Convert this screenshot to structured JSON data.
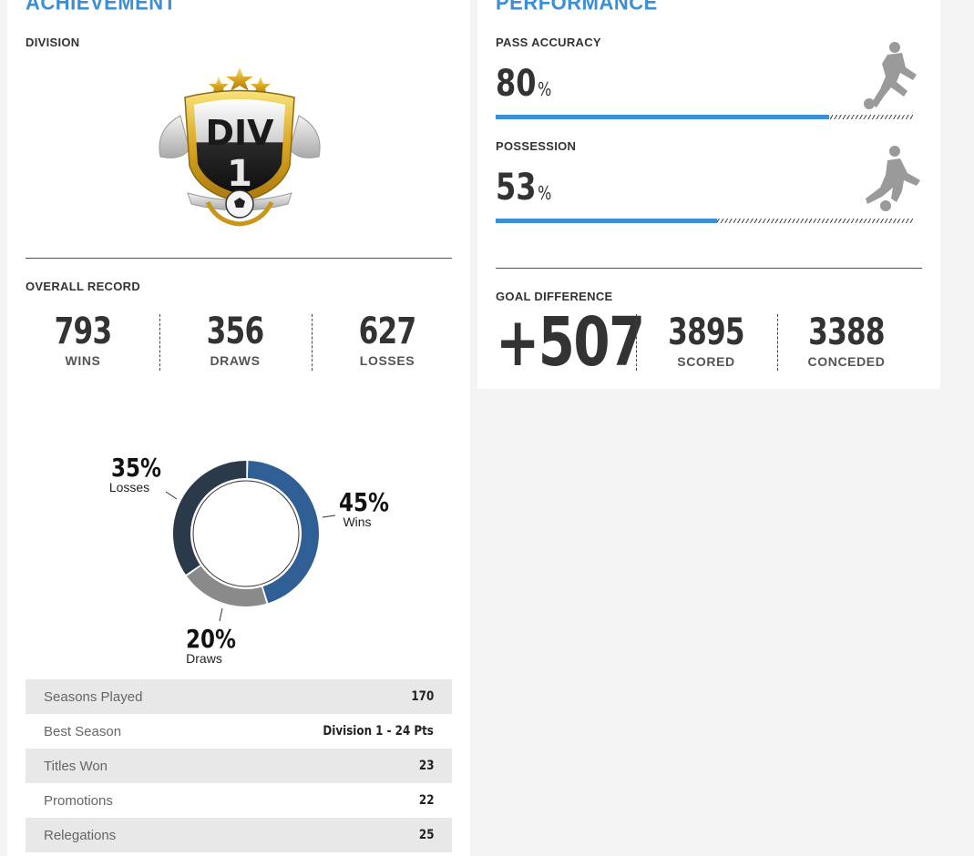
{
  "achievement": {
    "title": "ACHIEVEMENT",
    "division_label": "DIVISION",
    "badge": {
      "line1": "DIV",
      "line2": "1",
      "icon": "division-badge-icon"
    },
    "overall_record_label": "OVERALL RECORD",
    "record": [
      {
        "value": "793",
        "label": "WINS"
      },
      {
        "value": "356",
        "label": "DRAWS"
      },
      {
        "value": "627",
        "label": "LOSSES"
      }
    ]
  },
  "chart_data": {
    "type": "pie",
    "categories": [
      "Wins",
      "Draws",
      "Losses"
    ],
    "values": [
      45,
      20,
      35
    ],
    "labels": [
      "45%",
      "20%",
      "35%"
    ],
    "colors": [
      "#2f5f94",
      "#8a8a8a",
      "#2b3a4a"
    ]
  },
  "stats_table": [
    {
      "label": "Seasons Played",
      "value": "170"
    },
    {
      "label": "Best Season",
      "value": "Division 1 - 24 Pts"
    },
    {
      "label": "Titles Won",
      "value": "23"
    },
    {
      "label": "Promotions",
      "value": "22"
    },
    {
      "label": "Relegations",
      "value": "25"
    }
  ],
  "performance": {
    "title": "PERFORMANCE",
    "pass_accuracy": {
      "label": "PASS ACCURACY",
      "value": "80",
      "unit": "%",
      "fraction": 0.8,
      "icon": "kicking-player-icon"
    },
    "possession": {
      "label": "POSSESSION",
      "value": "53",
      "unit": "%",
      "fraction": 0.53,
      "icon": "dribbling-player-icon"
    },
    "goal_difference": {
      "label": "GOAL DIFFERENCE",
      "value": "+507",
      "scored": {
        "value": "3895",
        "label": "SCORED"
      },
      "conceded": {
        "value": "3388",
        "label": "CONCEDED"
      }
    }
  },
  "colors": {
    "accent": "#3a8fd6",
    "text": "#333333"
  }
}
